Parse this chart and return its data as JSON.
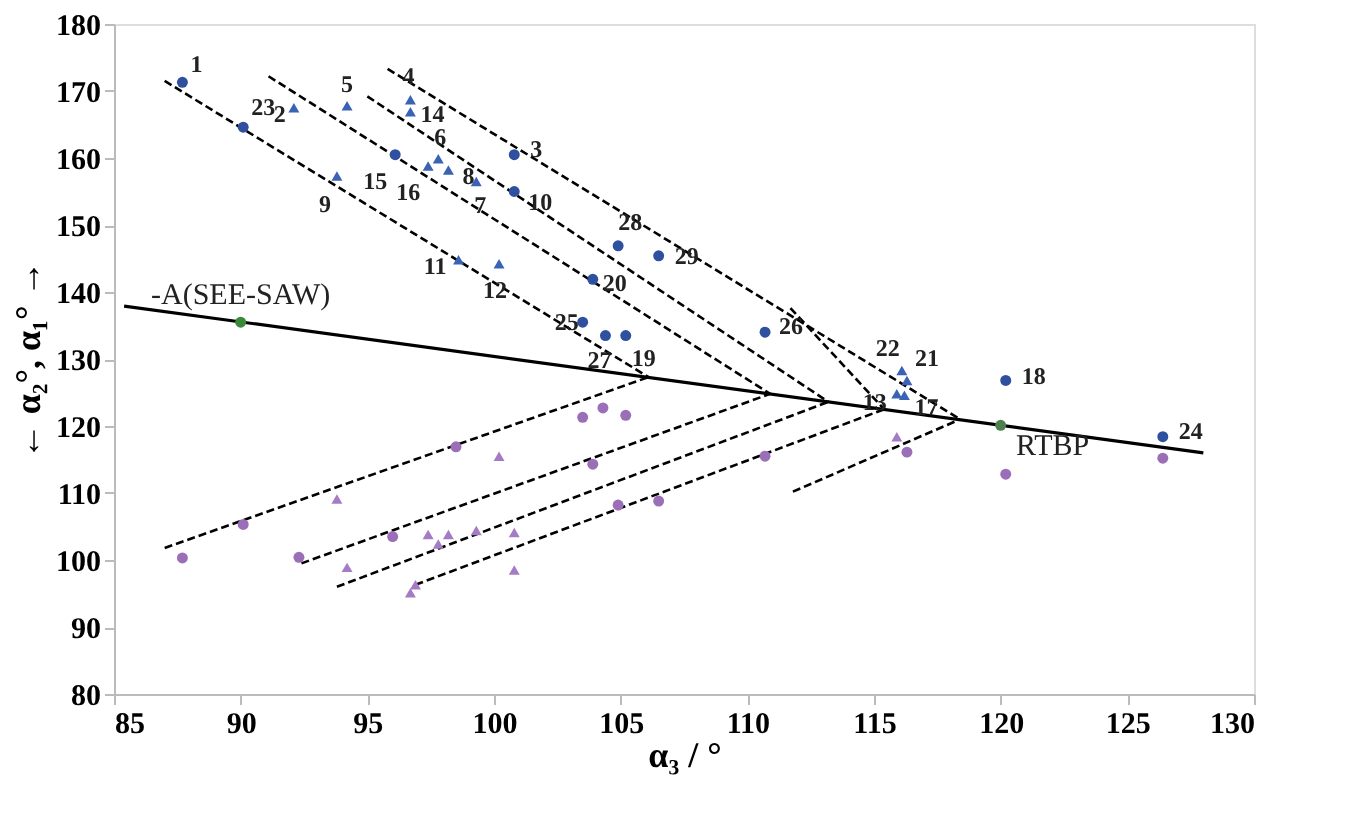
{
  "chart_data": {
    "type": "scatter",
    "xlabel": "α₃ / °",
    "ylabel": "←  α₂°, α₁°  →",
    "xlim": [
      85,
      130
    ],
    "xticks": [
      85,
      90,
      95,
      100,
      105,
      110,
      115,
      120,
      125,
      130
    ],
    "ylim": [
      80,
      180
    ],
    "yticks": [
      80,
      90,
      100,
      110,
      120,
      130,
      140,
      150,
      160,
      170,
      180
    ],
    "grid": false,
    "annotations": [
      {
        "text": "-A(SEE-SAW)",
        "x": 90,
        "y": 135.5
      },
      {
        "text": "RTBP",
        "x": 120,
        "y": 120.1
      },
      {
        "text": "1",
        "x": 87.7,
        "y": 171.3
      },
      {
        "text": "23",
        "x": 90.1,
        "y": 164.6
      },
      {
        "text": "15",
        "x": 96.1,
        "y": 160.5
      },
      {
        "text": "3",
        "x": 100.8,
        "y": 160.5
      },
      {
        "text": "10",
        "x": 100.8,
        "y": 155.0
      },
      {
        "text": "28",
        "x": 104.9,
        "y": 146.9
      },
      {
        "text": "29",
        "x": 106.5,
        "y": 145.4
      },
      {
        "text": "20",
        "x": 103.9,
        "y": 141.9
      },
      {
        "text": "25",
        "x": 103.5,
        "y": 135.5
      },
      {
        "text": "27",
        "x": 104.4,
        "y": 133.5
      },
      {
        "text": "19",
        "x": 105.2,
        "y": 133.5
      },
      {
        "text": "26",
        "x": 110.7,
        "y": 134.0
      },
      {
        "text": "18",
        "x": 120.2,
        "y": 126.8
      },
      {
        "text": "24",
        "x": 126.4,
        "y": 118.4
      },
      {
        "text": "2",
        "x": 92.1,
        "y": 167.5
      },
      {
        "text": "5",
        "x": 94.2,
        "y": 167.8
      },
      {
        "text": "4",
        "x": 96.7,
        "y": 168.7
      },
      {
        "text": "14",
        "x": 96.7,
        "y": 166.9
      },
      {
        "text": "6",
        "x": 97.8,
        "y": 159.9
      },
      {
        "text": "8",
        "x": 98.2,
        "y": 158.2
      },
      {
        "text": "16",
        "x": 97.4,
        "y": 158.8
      },
      {
        "text": "7",
        "x": 99.3,
        "y": 156.5
      },
      {
        "text": "9",
        "x": 93.8,
        "y": 157.3
      },
      {
        "text": "11",
        "x": 98.6,
        "y": 144.8
      },
      {
        "text": "12",
        "x": 100.2,
        "y": 144.2
      },
      {
        "text": "22",
        "x": 116.1,
        "y": 128.3
      },
      {
        "text": "21",
        "x": 116.3,
        "y": 126.8
      },
      {
        "text": "13",
        "x": 115.9,
        "y": 124.8
      },
      {
        "text": "17",
        "x": 116.2,
        "y": 124.6
      }
    ],
    "series": [
      {
        "type": "line",
        "color": "#000000",
        "line_style": "solid",
        "marker": "none",
        "x": [
          85.4,
          128
        ],
        "values": [
          137.9,
          116.0
        ]
      },
      {
        "type": "line",
        "color": "#000000",
        "line_style": "dashed",
        "marker": "none",
        "x": [
          87,
          106.1
        ],
        "values": [
          171.5,
          127.3
        ]
      },
      {
        "type": "line",
        "color": "#000000",
        "line_style": "dashed",
        "marker": "none",
        "x": [
          91.1,
          110.9
        ],
        "values": [
          172.2,
          124.8
        ]
      },
      {
        "type": "line",
        "color": "#000000",
        "line_style": "dashed",
        "marker": "none",
        "x": [
          95,
          113.2
        ],
        "values": [
          169.2,
          123.6
        ]
      },
      {
        "type": "line",
        "color": "#000000",
        "line_style": "dashed",
        "marker": "none",
        "x": [
          95.8,
          118.4
        ],
        "values": [
          173.3,
          121.0
        ]
      },
      {
        "type": "line",
        "color": "#000000",
        "line_style": "dashed",
        "marker": "none",
        "x": [
          111.7,
          115.4
        ],
        "values": [
          137.6,
          122.5
        ]
      },
      {
        "type": "line",
        "color": "#000000",
        "line_style": "dashed",
        "marker": "none",
        "x": [
          87,
          106.1
        ],
        "values": [
          101.8,
          127.3
        ]
      },
      {
        "type": "line",
        "color": "#000000",
        "line_style": "dashed",
        "marker": "none",
        "x": [
          92.4,
          110.9
        ],
        "values": [
          99.5,
          124.8
        ]
      },
      {
        "type": "line",
        "color": "#000000",
        "line_style": "dashed",
        "marker": "none",
        "x": [
          93.8,
          113.2
        ],
        "values": [
          96.0,
          123.6
        ]
      },
      {
        "type": "line",
        "color": "#000000",
        "line_style": "dashed",
        "marker": "none",
        "x": [
          96.9,
          115.4
        ],
        "values": [
          96.3,
          122.5
        ]
      },
      {
        "type": "line",
        "color": "#000000",
        "line_style": "dashed",
        "marker": "none",
        "x": [
          111.8,
          118.4
        ],
        "values": [
          110.2,
          121.0
        ]
      },
      {
        "color": "#2f4f9f",
        "marker": "circle",
        "x": [
          87.7,
          90.1,
          96.1,
          100.8,
          100.8,
          104.9,
          106.5,
          103.9,
          103.5,
          104.4,
          105.2,
          110.7,
          120.2,
          126.4
        ],
        "values": [
          171.3,
          164.6,
          160.5,
          160.5,
          155.0,
          146.9,
          145.4,
          141.9,
          135.5,
          133.5,
          133.5,
          134.0,
          126.8,
          118.4
        ]
      },
      {
        "color": "#3a62b5",
        "marker": "triangle",
        "x": [
          92.1,
          94.2,
          96.7,
          96.7,
          97.8,
          98.2,
          97.4,
          99.3,
          93.8,
          98.6,
          100.2,
          116.1,
          116.3,
          115.9,
          116.2
        ],
        "values": [
          167.5,
          167.8,
          168.7,
          166.9,
          159.9,
          158.2,
          158.8,
          156.5,
          157.3,
          144.8,
          144.2,
          128.3,
          126.8,
          124.8,
          124.6
        ]
      },
      {
        "color": "#9b6fb8",
        "marker": "circle",
        "x": [
          87.7,
          90.1,
          92.3,
          96.0,
          98.5,
          103.5,
          104.3,
          105.2,
          103.9,
          104.9,
          106.5,
          110.7,
          116.3,
          120.2,
          126.4
        ],
        "values": [
          100.3,
          105.3,
          100.4,
          103.5,
          116.9,
          121.3,
          122.7,
          121.6,
          114.3,
          108.2,
          108.8,
          115.5,
          116.1,
          112.8,
          115.2
        ]
      },
      {
        "color": "#a57cc4",
        "marker": "triangle",
        "x": [
          93.8,
          94.2,
          96.7,
          96.9,
          97.4,
          97.8,
          98.2,
          99.3,
          100.2,
          100.8,
          100.8,
          115.9
        ],
        "values": [
          109.1,
          98.9,
          95.1,
          96.3,
          103.8,
          102.4,
          103.8,
          104.4,
          115.5,
          104.1,
          98.5,
          118.4
        ]
      },
      {
        "colors": [
          "#3a8a3a",
          "#4f7f4f"
        ],
        "marker": "circle",
        "x": [
          90,
          120
        ],
        "values": [
          135.5,
          120.1
        ]
      }
    ]
  }
}
